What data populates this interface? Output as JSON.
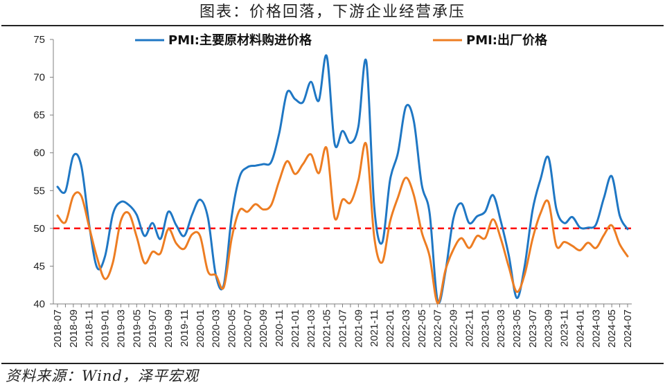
{
  "title": "图表：价格回落，下游企业经营承压",
  "source": "资料来源：Wind，泽平宏观",
  "chart_data": {
    "type": "line",
    "title": "图表：价格回落，下游企业经营承压",
    "xlabel": "",
    "ylabel": "",
    "ylim": [
      40,
      75
    ],
    "yticks": [
      40,
      45,
      50,
      55,
      60,
      65,
      70,
      75
    ],
    "grid": false,
    "legend": "top",
    "x": [
      "2018-07",
      "2018-08",
      "2018-09",
      "2018-10",
      "2018-11",
      "2018-12",
      "2019-01",
      "2019-02",
      "2019-03",
      "2019-04",
      "2019-05",
      "2019-06",
      "2019-07",
      "2019-08",
      "2019-09",
      "2019-10",
      "2019-11",
      "2019-12",
      "2020-01",
      "2020-02",
      "2020-03",
      "2020-04",
      "2020-05",
      "2020-06",
      "2020-07",
      "2020-08",
      "2020-09",
      "2020-10",
      "2020-11",
      "2020-12",
      "2021-01",
      "2021-02",
      "2021-03",
      "2021-04",
      "2021-05",
      "2021-06",
      "2021-07",
      "2021-08",
      "2021-09",
      "2021-10",
      "2021-11",
      "2021-12",
      "2022-01",
      "2022-02",
      "2022-03",
      "2022-04",
      "2022-05",
      "2022-06",
      "2022-07",
      "2022-08",
      "2022-09",
      "2022-10",
      "2022-11",
      "2022-12",
      "2023-01",
      "2023-02",
      "2023-03",
      "2023-04",
      "2023-05",
      "2023-06",
      "2023-07",
      "2023-08",
      "2023-09",
      "2023-10",
      "2023-11",
      "2023-12",
      "2024-01",
      "2024-02",
      "2024-03",
      "2024-04",
      "2024-05",
      "2024-06",
      "2024-07"
    ],
    "x_tick_labels": [
      "2018-07",
      "2018-09",
      "2018-11",
      "2019-01",
      "2019-03",
      "2019-05",
      "2019-07",
      "2019-09",
      "2019-11",
      "2020-01",
      "2020-03",
      "2020-05",
      "2020-07",
      "2020-09",
      "2020-11",
      "2021-01",
      "2021-03",
      "2021-05",
      "2021-07",
      "2021-09",
      "2021-11",
      "2022-01",
      "2022-03",
      "2022-05",
      "2022-07",
      "2022-09",
      "2022-11",
      "2023-01",
      "2023-03",
      "2023-05",
      "2023-07",
      "2023-09",
      "2023-11",
      "2024-01",
      "2024-03",
      "2024-05",
      "2024-07"
    ],
    "reference_line": {
      "y": 50,
      "color": "#ff0000",
      "style": "dashed"
    },
    "series": [
      {
        "name": "PMI:主要原材料购进价格",
        "color": "#1f77c4",
        "values": [
          55.5,
          54.9,
          59.6,
          58.3,
          50.5,
          44.8,
          46.3,
          51.9,
          53.5,
          53.1,
          51.8,
          49.0,
          50.7,
          48.6,
          52.2,
          50.4,
          49.0,
          51.8,
          53.8,
          51.4,
          43.8,
          42.5,
          51.6,
          56.8,
          58.1,
          58.3,
          58.5,
          58.8,
          62.6,
          68.0,
          67.1,
          66.7,
          69.4,
          66.9,
          72.8,
          61.2,
          62.9,
          61.3,
          63.5,
          72.1,
          52.9,
          48.1,
          56.4,
          60.0,
          66.1,
          64.2,
          55.8,
          52.0,
          40.4,
          44.3,
          51.3,
          53.3,
          50.7,
          51.6,
          52.2,
          54.4,
          50.9,
          46.4,
          40.8,
          45.0,
          52.4,
          56.5,
          59.4,
          52.6,
          50.7,
          51.5,
          50.1,
          50.1,
          50.5,
          54.0,
          56.9,
          51.7,
          49.9
        ]
      },
      {
        "name": "PMI:出厂价格",
        "color": "#ed7d22",
        "values": [
          51.7,
          50.8,
          54.3,
          54.3,
          50.2,
          46.1,
          43.3,
          45.5,
          51.0,
          52.0,
          48.9,
          45.4,
          46.9,
          46.7,
          49.9,
          48.0,
          47.3,
          49.2,
          49.0,
          44.3,
          43.8,
          42.2,
          48.7,
          52.4,
          52.2,
          53.2,
          52.5,
          53.1,
          56.3,
          58.9,
          57.2,
          58.5,
          59.8,
          57.3,
          60.6,
          51.4,
          53.8,
          53.4,
          56.4,
          61.1,
          48.9,
          45.5,
          50.9,
          54.1,
          56.7,
          54.4,
          49.5,
          46.3,
          40.1,
          44.5,
          47.2,
          48.7,
          47.4,
          49.0,
          48.7,
          51.2,
          48.6,
          44.9,
          41.6,
          43.9,
          48.6,
          52.0,
          53.5,
          47.7,
          48.2,
          47.7,
          47.1,
          48.1,
          47.4,
          49.1,
          50.4,
          47.9,
          46.3
        ]
      }
    ]
  }
}
